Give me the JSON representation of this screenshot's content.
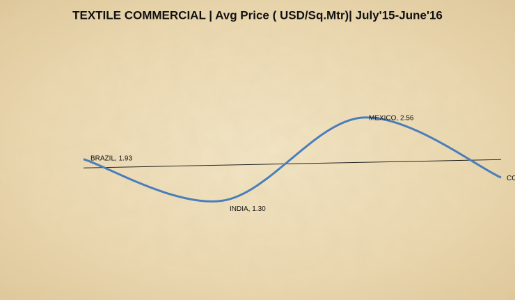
{
  "chart_data": {
    "type": "line",
    "title": "TEXTILE COMMERCIAL  | Avg Price ( USD/Sq.Mtr)| July'15-June'16",
    "values": [
      1.93,
      1.3,
      2.56,
      1.65
    ],
    "value_labels": [
      "BRAZIL, 1.93",
      "INDIA, 1.30",
      "MEXICO, 2.56",
      "CO"
    ],
    "color": "#4a7ebb",
    "ylim": [
      0.5,
      3.5
    ],
    "smooth": true,
    "trendline": true
  }
}
